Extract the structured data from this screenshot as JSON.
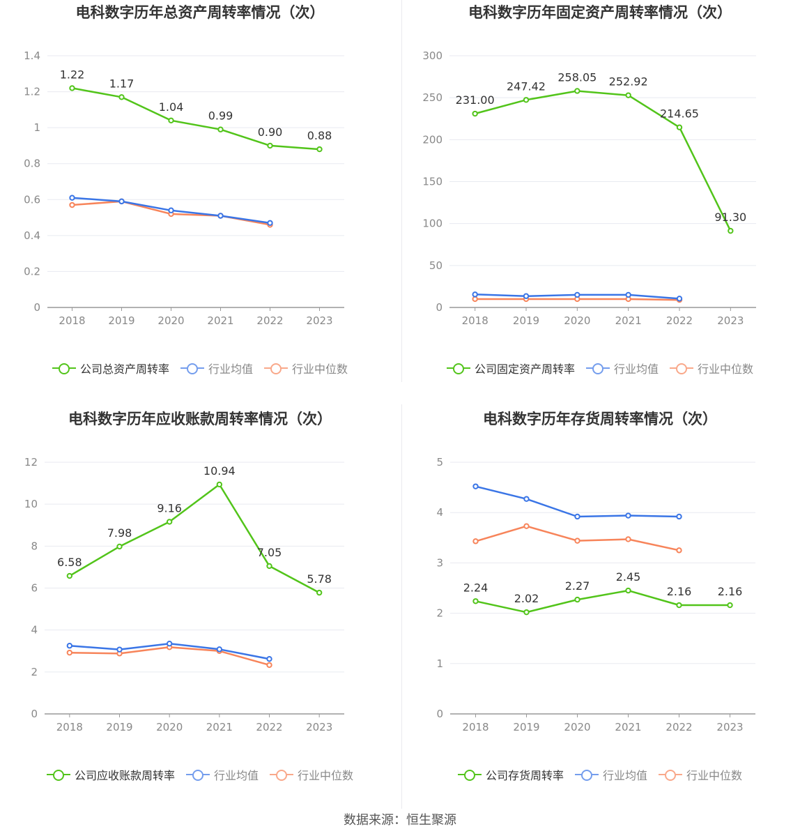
{
  "source_text": "数据来源：恒生聚源",
  "colors": {
    "company": "#52c41a",
    "avg": "#3a75e6",
    "median": "#f7845a",
    "grid": "#e8eaf0",
    "axis": "#999999"
  },
  "chart_data": [
    {
      "type": "line",
      "title": "电科数字历年总资产周转率情况（次）",
      "categories": [
        "2018",
        "2019",
        "2020",
        "2021",
        "2022",
        "2023"
      ],
      "yticks": [
        "0",
        "0.2",
        "0.4",
        "0.6",
        "0.8",
        "1",
        "1.2",
        "1.4"
      ],
      "ylim": [
        0,
        1.4
      ],
      "grid": true,
      "legend": "bottom",
      "series": [
        {
          "name": "公司总资产周转率",
          "key": "company",
          "values": [
            1.22,
            1.17,
            1.04,
            0.99,
            0.9,
            0.88
          ],
          "labels": [
            "1.22",
            "1.17",
            "1.04",
            "0.99",
            "0.90",
            "0.88"
          ]
        },
        {
          "name": "行业均值",
          "key": "avg",
          "values": [
            0.61,
            0.59,
            0.54,
            0.51,
            0.47,
            null
          ]
        },
        {
          "name": "行业中位数",
          "key": "median",
          "values": [
            0.57,
            0.59,
            0.52,
            0.51,
            0.46,
            null
          ]
        }
      ]
    },
    {
      "type": "line",
      "title": "电科数字历年固定资产周转率情况（次）",
      "categories": [
        "2018",
        "2019",
        "2020",
        "2021",
        "2022",
        "2023"
      ],
      "yticks": [
        "0",
        "50",
        "100",
        "150",
        "200",
        "250",
        "300"
      ],
      "ylim": [
        0,
        300
      ],
      "grid": true,
      "legend": "bottom",
      "series": [
        {
          "name": "公司固定资产周转率",
          "key": "company",
          "values": [
            231.0,
            247.42,
            258.05,
            252.92,
            214.65,
            91.3
          ],
          "labels": [
            "231.00",
            "247.42",
            "258.05",
            "252.92",
            "214.65",
            "91.30"
          ]
        },
        {
          "name": "行业均值",
          "key": "avg",
          "values": [
            15.5,
            13.5,
            15,
            15,
            10.5,
            null
          ]
        },
        {
          "name": "行业中位数",
          "key": "median",
          "values": [
            10,
            10,
            10,
            10,
            9,
            null
          ]
        }
      ]
    },
    {
      "type": "line",
      "title": "电科数字历年应收账款周转率情况（次）",
      "categories": [
        "2018",
        "2019",
        "2020",
        "2021",
        "2022",
        "2023"
      ],
      "yticks": [
        "0",
        "2",
        "4",
        "6",
        "8",
        "10",
        "12"
      ],
      "ylim": [
        0,
        12
      ],
      "grid": true,
      "legend": "bottom",
      "series": [
        {
          "name": "公司应收账款周转率",
          "key": "company",
          "values": [
            6.58,
            7.98,
            9.16,
            10.94,
            7.05,
            5.78
          ],
          "labels": [
            "6.58",
            "7.98",
            "9.16",
            "10.94",
            "7.05",
            "5.78"
          ]
        },
        {
          "name": "行业均值",
          "key": "avg",
          "values": [
            3.25,
            3.07,
            3.35,
            3.08,
            2.62,
            null
          ]
        },
        {
          "name": "行业中位数",
          "key": "median",
          "values": [
            2.92,
            2.88,
            3.18,
            3.0,
            2.33,
            null
          ]
        }
      ]
    },
    {
      "type": "line",
      "title": "电科数字历年存货周转率情况（次）",
      "categories": [
        "2018",
        "2019",
        "2020",
        "2021",
        "2022",
        "2023"
      ],
      "yticks": [
        "0",
        "1",
        "2",
        "3",
        "4",
        "5"
      ],
      "ylim": [
        0,
        5
      ],
      "grid": true,
      "legend": "bottom",
      "series": [
        {
          "name": "公司存货周转率",
          "key": "company",
          "values": [
            2.24,
            2.02,
            2.27,
            2.45,
            2.16,
            2.16
          ],
          "labels": [
            "2.24",
            "2.02",
            "2.27",
            "2.45",
            "2.16",
            "2.16"
          ]
        },
        {
          "name": "行业均值",
          "key": "avg",
          "values": [
            4.52,
            4.27,
            3.92,
            3.94,
            3.92,
            null
          ]
        },
        {
          "name": "行业中位数",
          "key": "median",
          "values": [
            3.43,
            3.73,
            3.44,
            3.47,
            3.25,
            null
          ]
        }
      ]
    }
  ]
}
